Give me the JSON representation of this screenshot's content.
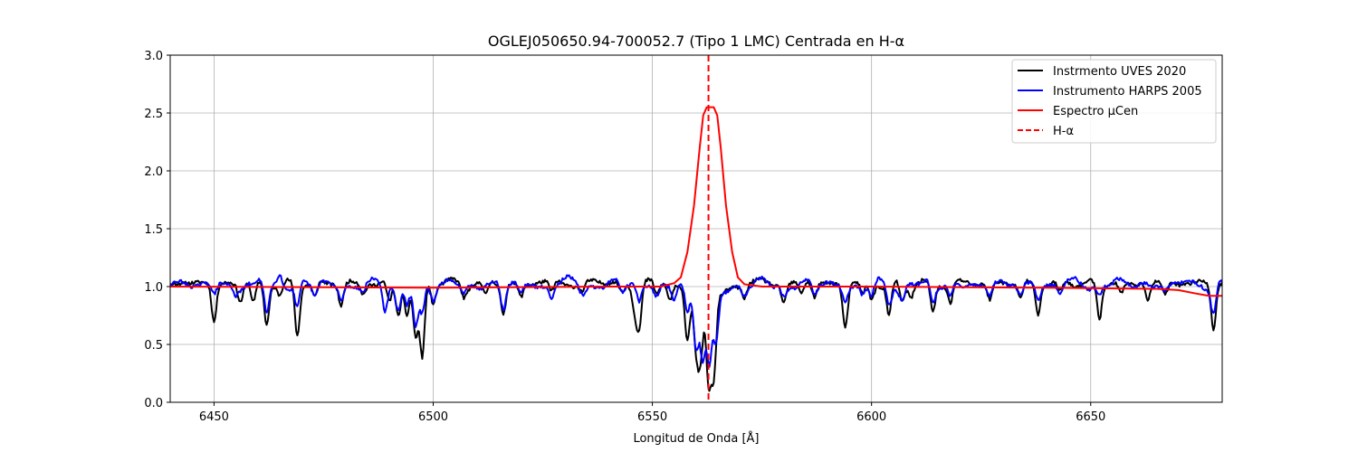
{
  "chart_data": {
    "type": "line",
    "title": "OGLEJ050650.94-700052.7 (Tipo 1 LMC) Centrada en H-α",
    "xlabel": "Longitud de Onda [Å]",
    "ylabel": "",
    "xlim": [
      6440,
      6680
    ],
    "ylim": [
      0,
      3.0
    ],
    "xticks": [
      6450,
      6500,
      6550,
      6600,
      6650
    ],
    "xtick_labels": [
      "6450",
      "6500",
      "6550",
      "6600",
      "6650"
    ],
    "yticks": [
      0,
      0.5,
      1.0,
      1.5,
      2.0,
      2.5,
      3.0
    ],
    "ytick_labels": [
      "0.0",
      "0.5",
      "1.0",
      "1.5",
      "2.0",
      "2.5",
      "3.0"
    ],
    "grid": true,
    "legend_position": "top-right",
    "continuum": 1.0,
    "series": [
      {
        "name": "Instrmento UVES 2020",
        "color": "#000000",
        "style": "solid",
        "base": 1.03,
        "absorption_lines": [
          [
            6450,
            0.7
          ],
          [
            6456,
            0.88
          ],
          [
            6459,
            0.85
          ],
          [
            6462,
            0.68
          ],
          [
            6465,
            0.93
          ],
          [
            6469,
            0.58
          ],
          [
            6473,
            0.9
          ],
          [
            6479,
            0.84
          ],
          [
            6484,
            0.94
          ],
          [
            6490,
            0.85
          ],
          [
            6492,
            0.74
          ],
          [
            6494,
            0.78
          ],
          [
            6496,
            0.57
          ],
          [
            6497.5,
            0.38
          ],
          [
            6500,
            0.87
          ],
          [
            6507,
            0.93
          ],
          [
            6512,
            0.9
          ],
          [
            6516,
            0.76
          ],
          [
            6520,
            0.92
          ],
          [
            6527,
            0.94
          ],
          [
            6534,
            0.96
          ],
          [
            6543,
            0.96
          ],
          [
            6546,
            0.83
          ],
          [
            6547,
            0.66
          ],
          [
            6551,
            0.92
          ],
          [
            6554,
            0.9
          ],
          [
            6558,
            0.6
          ],
          [
            6560,
            0.55
          ],
          [
            6561,
            0.48
          ],
          [
            6562.8,
            0.3
          ],
          [
            6564,
            0.35
          ],
          [
            6571,
            0.92
          ],
          [
            6580,
            0.88
          ],
          [
            6584,
            0.94
          ],
          [
            6587,
            0.9
          ],
          [
            6594,
            0.66
          ],
          [
            6598,
            0.9
          ],
          [
            6600,
            0.88
          ],
          [
            6604,
            0.76
          ],
          [
            6607,
            0.86
          ],
          [
            6609,
            0.92
          ],
          [
            6614,
            0.78
          ],
          [
            6618,
            0.86
          ],
          [
            6627,
            0.88
          ],
          [
            6634,
            0.9
          ],
          [
            6638,
            0.77
          ],
          [
            6643,
            0.93
          ],
          [
            6652,
            0.72
          ],
          [
            6657,
            0.94
          ],
          [
            6663,
            0.88
          ],
          [
            6667,
            0.93
          ],
          [
            6678,
            0.63
          ]
        ]
      },
      {
        "name": "Instrumento HARPS 2005",
        "color": "#0000ff",
        "style": "solid",
        "base": 1.02,
        "absorption_lines": [
          [
            6450,
            0.92
          ],
          [
            6455,
            0.95
          ],
          [
            6459,
            0.97
          ],
          [
            6462,
            0.78
          ],
          [
            6465,
            1.12
          ],
          [
            6469,
            0.8
          ],
          [
            6473,
            0.92
          ],
          [
            6479,
            0.9
          ],
          [
            6484,
            0.95
          ],
          [
            6489,
            0.8
          ],
          [
            6492,
            0.8
          ],
          [
            6494,
            0.84
          ],
          [
            6496,
            0.64
          ],
          [
            6497.5,
            0.75
          ],
          [
            6500,
            0.9
          ],
          [
            6507,
            0.95
          ],
          [
            6516,
            0.8
          ],
          [
            6520,
            0.93
          ],
          [
            6527,
            0.93
          ],
          [
            6534,
            0.96
          ],
          [
            6543,
            0.95
          ],
          [
            6547,
            0.85
          ],
          [
            6551,
            0.93
          ],
          [
            6555,
            0.9
          ],
          [
            6558,
            0.8
          ],
          [
            6560,
            0.55
          ],
          [
            6561.5,
            0.5
          ],
          [
            6563,
            0.45
          ],
          [
            6564.5,
            0.6
          ],
          [
            6571,
            0.96
          ],
          [
            6580,
            0.92
          ],
          [
            6587,
            0.93
          ],
          [
            6594,
            0.9
          ],
          [
            6598,
            0.93
          ],
          [
            6600,
            0.9
          ],
          [
            6604,
            0.85
          ],
          [
            6607,
            0.9
          ],
          [
            6614,
            0.85
          ],
          [
            6618,
            0.9
          ],
          [
            6627,
            0.92
          ],
          [
            6634,
            0.93
          ],
          [
            6638,
            0.9
          ],
          [
            6643,
            0.95
          ],
          [
            6652,
            0.95
          ],
          [
            6667,
            0.97
          ],
          [
            6678,
            0.78
          ]
        ]
      },
      {
        "name": "Espectro μCen",
        "color": "#ff0000",
        "style": "solid",
        "peak_center": 6563.2,
        "peak_value": 2.55,
        "peak_flat_halfwidth": 0.8,
        "points": [
          [
            6440,
            1.0
          ],
          [
            6500,
            0.99
          ],
          [
            6540,
            1.0
          ],
          [
            6552,
            1.0
          ],
          [
            6555,
            1.03
          ],
          [
            6556.5,
            1.08
          ],
          [
            6558,
            1.3
          ],
          [
            6559.5,
            1.7
          ],
          [
            6560.8,
            2.2
          ],
          [
            6561.6,
            2.48
          ],
          [
            6562.4,
            2.55
          ],
          [
            6564.0,
            2.55
          ],
          [
            6564.8,
            2.48
          ],
          [
            6565.6,
            2.2
          ],
          [
            6566.8,
            1.7
          ],
          [
            6568.2,
            1.3
          ],
          [
            6569.5,
            1.08
          ],
          [
            6571,
            1.02
          ],
          [
            6575,
            1.0
          ],
          [
            6600,
            1.0
          ],
          [
            6640,
            0.99
          ],
          [
            6665,
            0.98
          ],
          [
            6670,
            0.97
          ],
          [
            6674,
            0.94
          ],
          [
            6677,
            0.92
          ],
          [
            6680,
            0.92
          ]
        ]
      },
      {
        "name": "H-α",
        "color": "#ff0000",
        "style": "dashed",
        "x": 6562.8
      }
    ]
  }
}
